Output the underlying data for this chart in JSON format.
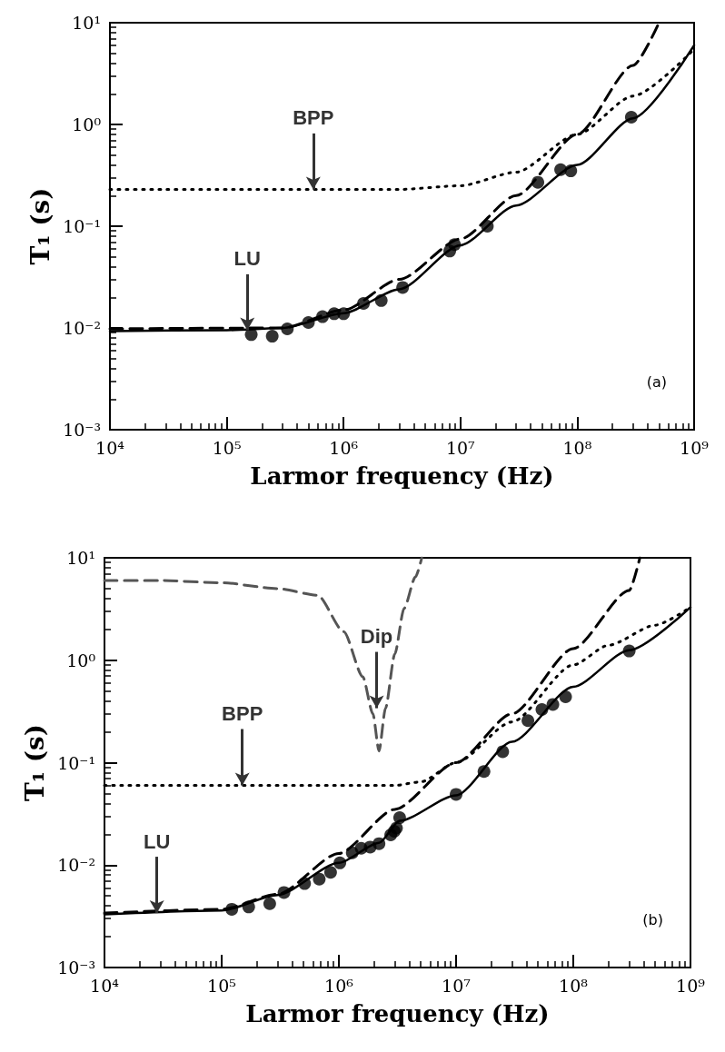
{
  "chart_data": [
    {
      "type": "line",
      "xlabel": "Larmor frequency (Hz)",
      "ylabel": "T₁ (s)",
      "log": "xy",
      "grid": false,
      "xlim": [
        10000,
        1000000000
      ],
      "ylim": [
        0.001,
        10
      ],
      "xticks": [
        {
          "value": 10000,
          "label": "10⁴"
        },
        {
          "value": 100000,
          "label": "10⁵"
        },
        {
          "value": 1000000,
          "label": "10⁶"
        },
        {
          "value": 10000000,
          "label": "10⁷"
        },
        {
          "value": 100000000,
          "label": "10⁸"
        },
        {
          "value": 1000000000,
          "label": "10⁹"
        }
      ],
      "yticks": [
        {
          "value": 0.001,
          "label": "10⁻³"
        },
        {
          "value": 0.01,
          "label": "10⁻²"
        },
        {
          "value": 0.1,
          "label": "10⁻¹"
        },
        {
          "value": 1,
          "label": "10⁰"
        },
        {
          "value": 10,
          "label": "10¹"
        }
      ],
      "annotations": [
        {
          "text": "LU",
          "x": 150000,
          "y": 0.0095
        },
        {
          "text": "BPP",
          "x": 550000,
          "y": 0.23
        },
        "(a)"
      ],
      "series": [
        {
          "type": "scatter",
          "color": "#000000",
          "marker": "circle",
          "x": [
            162000,
            245000,
            330000,
            500000,
            660000,
            830000,
            1000000,
            1480000,
            2100000,
            3200000,
            8100000,
            8900000,
            17000000,
            46000000,
            72000000,
            88000000,
            290000000
          ],
          "values": [
            0.0086,
            0.0083,
            0.0098,
            0.0113,
            0.0129,
            0.0138,
            0.0138,
            0.0174,
            0.0186,
            0.025,
            0.057,
            0.066,
            0.1,
            0.27,
            0.36,
            0.35,
            1.18
          ]
        },
        {
          "type": "line",
          "color": "#000000",
          "line_style": "solid",
          "marker": "none",
          "x": [
            10000,
            100000,
            300000,
            1000000,
            3000000,
            10000000,
            30000000,
            100000000,
            300000000,
            1000000000
          ],
          "values": [
            0.0093,
            0.0095,
            0.01,
            0.014,
            0.024,
            0.065,
            0.16,
            0.4,
            1.15,
            6
          ]
        },
        {
          "type": "line",
          "color": "#000000",
          "line_style": "dashed",
          "marker": "none",
          "x": [
            10000,
            300000,
            1000000,
            3000000,
            10000000,
            30000000,
            100000000,
            300000000,
            500000000
          ],
          "values": [
            0.0098,
            0.01,
            0.015,
            0.03,
            0.075,
            0.2,
            0.8,
            3.8,
            10
          ]
        },
        {
          "type": "line",
          "color": "#000000",
          "line_style": "dotted",
          "marker": "none",
          "x": [
            10000,
            3000000,
            10000000,
            30000000,
            100000000,
            300000000,
            1000000000
          ],
          "values": [
            0.23,
            0.23,
            0.25,
            0.34,
            0.8,
            1.9,
            5.5
          ]
        }
      ]
    },
    {
      "type": "line",
      "xlabel": "Larmor frequency (Hz)",
      "ylabel": "T₁ (s)",
      "log": "xy",
      "grid": false,
      "xlim": [
        10000,
        1000000000
      ],
      "ylim": [
        0.001,
        10
      ],
      "xticks": [
        {
          "value": 10000,
          "label": "10⁴"
        },
        {
          "value": 100000,
          "label": "10⁵"
        },
        {
          "value": 1000000,
          "label": "10⁶"
        },
        {
          "value": 10000000,
          "label": "10⁷"
        },
        {
          "value": 100000000,
          "label": "10⁸"
        },
        {
          "value": 1000000000,
          "label": "10⁹"
        }
      ],
      "yticks": [
        {
          "value": 0.001,
          "label": "10⁻³"
        },
        {
          "value": 0.01,
          "label": "10⁻²"
        },
        {
          "value": 0.1,
          "label": "10⁻¹"
        },
        {
          "value": 1,
          "label": "10⁰"
        },
        {
          "value": 10,
          "label": "10¹"
        }
      ],
      "annotations": [
        {
          "text": "LU",
          "x": 28000,
          "y": 0.0034
        },
        {
          "text": "BPP",
          "x": 150000,
          "y": 0.06
        },
        {
          "text": "Dip",
          "x": 2100000,
          "y": 0.34
        },
        "(b)"
      ],
      "series": [
        {
          "type": "scatter",
          "color": "#000000",
          "marker": "circle",
          "x": [
            122000,
            170000,
            257000,
            340000,
            510000,
            680000,
            850000,
            1020000,
            1300000,
            1550000,
            1850000,
            2200000,
            2770000,
            2970000,
            3100000,
            3300000,
            10000000,
            17300000,
            25000000,
            41000000,
            54000000,
            67000000,
            86000000,
            300000000
          ],
          "values": [
            0.0037,
            0.0039,
            0.0042,
            0.0054,
            0.0066,
            0.0073,
            0.0085,
            0.0105,
            0.0132,
            0.0146,
            0.015,
            0.0162,
            0.0197,
            0.0214,
            0.023,
            0.029,
            0.049,
            0.082,
            0.128,
            0.257,
            0.33,
            0.37,
            0.44,
            1.23
          ]
        },
        {
          "type": "line",
          "color": "#000000",
          "line_style": "solid",
          "marker": "none",
          "x": [
            10000,
            100000,
            300000,
            1000000,
            2200000,
            3300000,
            10000000,
            30000000,
            100000000,
            300000000,
            1000000000
          ],
          "values": [
            0.0033,
            0.0036,
            0.0051,
            0.0105,
            0.0165,
            0.027,
            0.048,
            0.16,
            0.55,
            1.25,
            3.3
          ]
        },
        {
          "type": "line",
          "color": "#000000",
          "line_style": "dashed",
          "marker": "none",
          "x": [
            10000,
            100000,
            300000,
            1000000,
            3000000,
            10000000,
            30000000,
            100000000,
            300000000,
            370000000
          ],
          "values": [
            0.0034,
            0.0037,
            0.0052,
            0.013,
            0.035,
            0.1,
            0.3,
            1.3,
            4.8,
            10
          ]
        },
        {
          "type": "line",
          "color": "#000000",
          "line_style": "dotted",
          "marker": "none",
          "x": [
            10000,
            3000000,
            5000000,
            10000000,
            30000000,
            100000000,
            200000000,
            500000000,
            1000000000
          ],
          "values": [
            0.06,
            0.06,
            0.065,
            0.1,
            0.25,
            0.9,
            1.4,
            2.2,
            3.3
          ]
        },
        {
          "type": "line",
          "color": "#555555",
          "line_style": "dashed",
          "marker": "none",
          "x": [
            10000,
            30000,
            100000,
            300000,
            660000,
            1100000,
            1600000,
            1950000,
            2200000,
            2500000,
            3000000,
            3600000,
            4500000,
            5100000
          ],
          "values": [
            6,
            6,
            5.7,
            5,
            4.3,
            1.9,
            0.69,
            0.3,
            0.13,
            0.34,
            1.15,
            3.2,
            6.5,
            10
          ]
        }
      ]
    }
  ]
}
